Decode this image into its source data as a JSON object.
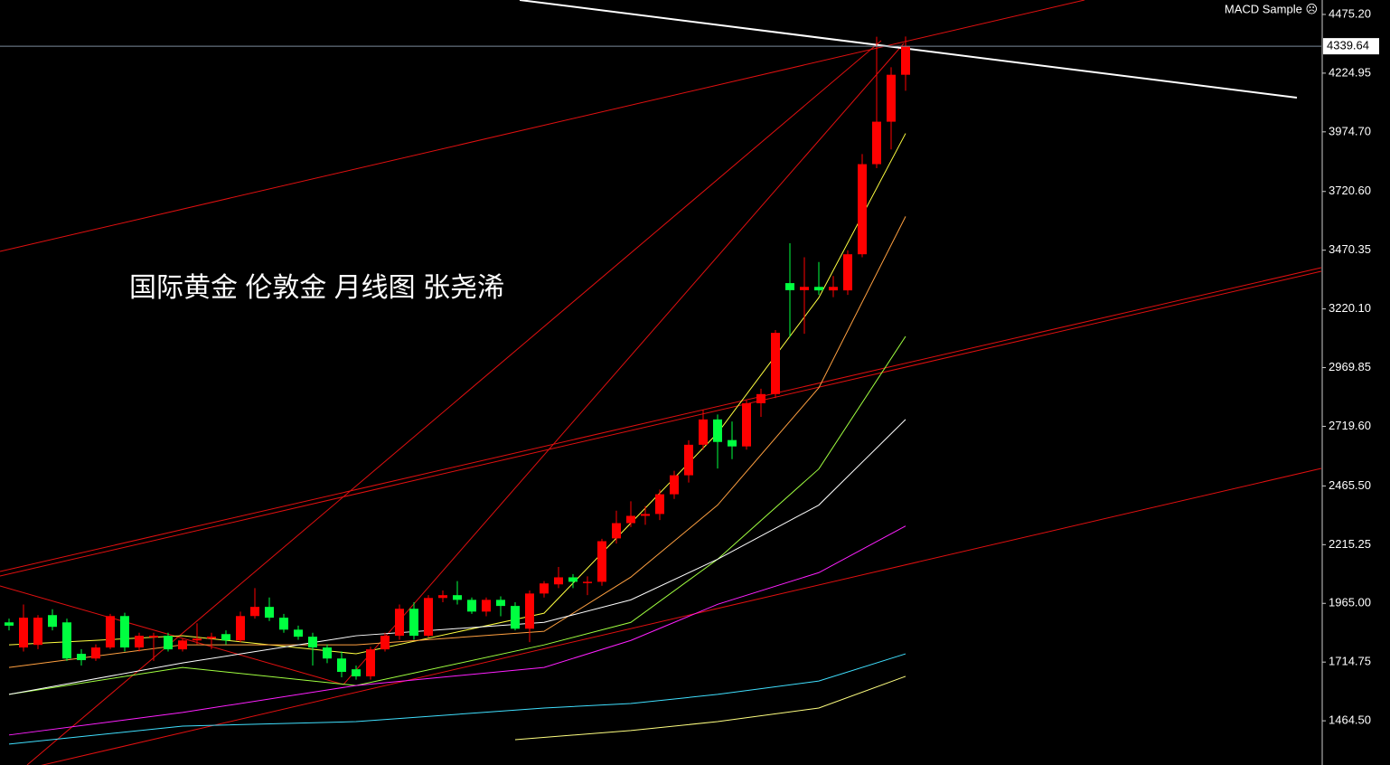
{
  "chart_data": {
    "type": "candlestick",
    "title": "国际黄金 伦敦金 月线图 张尧浠",
    "indicator": "MACD Sample ☹",
    "up_color": "#ff0000",
    "down_color": "#00ff40",
    "ylim": [
      1276.1,
      4536.7
    ],
    "yticks": [
      {
        "value": 4475.2,
        "label": "4475.20"
      },
      {
        "value": 4224.95,
        "label": "4224.95"
      },
      {
        "value": 3974.7,
        "label": "3974.70"
      },
      {
        "value": 3720.6,
        "label": "3720.60"
      },
      {
        "value": 3470.35,
        "label": "3470.35"
      },
      {
        "value": 3220.1,
        "label": "3220.10"
      },
      {
        "value": 2969.85,
        "label": "2969.85"
      },
      {
        "value": 2719.6,
        "label": "2719.60"
      },
      {
        "value": 2465.5,
        "label": "2465.50"
      },
      {
        "value": 2215.25,
        "label": "2215.25"
      },
      {
        "value": 1965.0,
        "label": "1965.00"
      },
      {
        "value": 1714.75,
        "label": "1714.75"
      },
      {
        "value": 1464.5,
        "label": "1464.50"
      }
    ],
    "last_price": 4339.64,
    "ohlc": [
      [
        1884,
        1900,
        1850,
        1870
      ],
      [
        1777,
        1960,
        1760,
        1904
      ],
      [
        1788,
        1915,
        1770,
        1904
      ],
      [
        1915,
        1940,
        1850,
        1865
      ],
      [
        1884,
        1900,
        1720,
        1730
      ],
      [
        1750,
        1770,
        1700,
        1723
      ],
      [
        1730,
        1790,
        1720,
        1777
      ],
      [
        1777,
        1920,
        1770,
        1911
      ],
      [
        1911,
        1925,
        1760,
        1777
      ],
      [
        1777,
        1840,
        1760,
        1827
      ],
      [
        1820,
        1840,
        1720,
        1827
      ],
      [
        1827,
        1840,
        1760,
        1769
      ],
      [
        1769,
        1815,
        1760,
        1807
      ],
      [
        1807,
        1880,
        1790,
        1815
      ],
      [
        1815,
        1840,
        1770,
        1823
      ],
      [
        1834,
        1850,
        1790,
        1807
      ],
      [
        1807,
        1930,
        1800,
        1911
      ],
      [
        1911,
        2030,
        1900,
        1950
      ],
      [
        1950,
        1990,
        1890,
        1904
      ],
      [
        1904,
        1920,
        1840,
        1853
      ],
      [
        1853,
        1870,
        1810,
        1823
      ],
      [
        1823,
        1840,
        1700,
        1777
      ],
      [
        1777,
        1790,
        1710,
        1730
      ],
      [
        1730,
        1760,
        1650,
        1673
      ],
      [
        1684,
        1700,
        1640,
        1654
      ],
      [
        1654,
        1780,
        1640,
        1769
      ],
      [
        1769,
        1840,
        1760,
        1827
      ],
      [
        1827,
        1960,
        1810,
        1942
      ],
      [
        1942,
        1970,
        1810,
        1827
      ],
      [
        1827,
        2000,
        1820,
        1988
      ],
      [
        1988,
        2020,
        1970,
        2000
      ],
      [
        2000,
        2060,
        1960,
        1980
      ],
      [
        1980,
        1990,
        1920,
        1930
      ],
      [
        1930,
        1990,
        1910,
        1980
      ],
      [
        1980,
        1995,
        1910,
        1954
      ],
      [
        1954,
        1970,
        1850,
        1857
      ],
      [
        1857,
        2020,
        1800,
        2007
      ],
      [
        2007,
        2060,
        1990,
        2050
      ],
      [
        2046,
        2120,
        2030,
        2076
      ],
      [
        2076,
        2090,
        2030,
        2057
      ],
      [
        2057,
        2080,
        2000,
        2057
      ],
      [
        2057,
        2240,
        2040,
        2230
      ],
      [
        2242,
        2360,
        2220,
        2307
      ],
      [
        2307,
        2400,
        2290,
        2338
      ],
      [
        2338,
        2380,
        2300,
        2346
      ],
      [
        2346,
        2450,
        2320,
        2430
      ],
      [
        2430,
        2530,
        2410,
        2511
      ],
      [
        2511,
        2660,
        2480,
        2641
      ],
      [
        2641,
        2790,
        2620,
        2749
      ],
      [
        2749,
        2770,
        2540,
        2653
      ],
      [
        2661,
        2740,
        2580,
        2634
      ],
      [
        2634,
        2830,
        2620,
        2818
      ],
      [
        2818,
        2880,
        2760,
        2857
      ],
      [
        2857,
        3130,
        2840,
        3118
      ],
      [
        3330,
        3500,
        3100,
        3300
      ],
      [
        3300,
        3440,
        3114,
        3314
      ],
      [
        3314,
        3420,
        3280,
        3299
      ],
      [
        3299,
        3360,
        3270,
        3314
      ],
      [
        3299,
        3470,
        3280,
        3453
      ],
      [
        3453,
        3880,
        3440,
        3837
      ],
      [
        3837,
        4380,
        3820,
        4018
      ],
      [
        4018,
        4250,
        3900,
        4218
      ],
      [
        4218,
        4381,
        4150,
        4339.64
      ]
    ],
    "overlays": [
      {
        "color": "#ffff40",
        "x": [
          0,
          12,
          24,
          37,
          43,
          49,
          56,
          62
        ],
        "values": [
          1788,
          1827,
          1750,
          1923,
          2307,
          2691,
          3268,
          3968
        ]
      },
      {
        "color": "#ffa040",
        "x": [
          0,
          12,
          24,
          37,
          43,
          49,
          56,
          62
        ],
        "values": [
          1692,
          1788,
          1788,
          1846,
          2077,
          2384,
          2884,
          3614
        ]
      },
      {
        "color": "#a0ff40",
        "x": [
          0,
          12,
          24,
          37,
          43,
          49,
          56,
          62
        ],
        "values": [
          1577,
          1692,
          1615,
          1788,
          1884,
          2153,
          2538,
          3103
        ]
      },
      {
        "color": "#ffffff",
        "x": [
          0,
          12,
          24,
          37,
          43,
          49,
          56,
          62
        ],
        "values": [
          1577,
          1711,
          1827,
          1884,
          1980,
          2153,
          2384,
          2749
        ]
      },
      {
        "color": "#ff20ff",
        "x": [
          0,
          12,
          24,
          37,
          43,
          49,
          56,
          62
        ],
        "values": [
          1404,
          1500,
          1615,
          1692,
          1807,
          1961,
          2096,
          2295
        ]
      },
      {
        "color": "#40e0ff",
        "x": [
          0,
          12,
          24,
          37,
          43,
          49,
          56,
          62
        ],
        "values": [
          1365,
          1442,
          1461,
          1519,
          1538,
          1577,
          1634,
          1750
        ]
      },
      {
        "color": "#ffff80",
        "x": [
          35,
          43,
          49,
          56,
          62
        ],
        "values": [
          1384,
          1423,
          1461,
          1519,
          1654
        ]
      }
    ]
  }
}
